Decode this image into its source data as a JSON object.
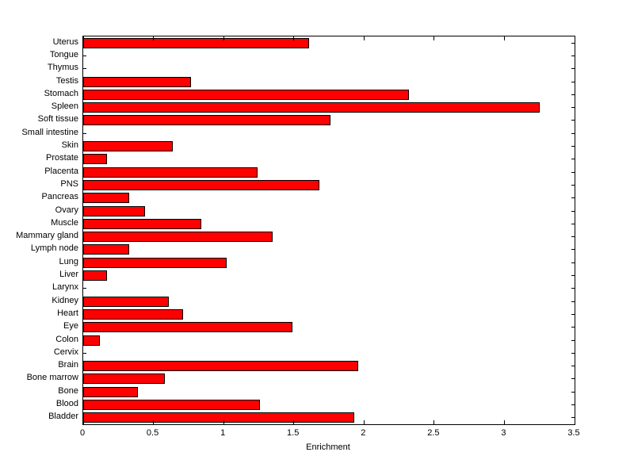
{
  "chart_data": {
    "type": "bar",
    "orientation": "horizontal",
    "title": "",
    "xlabel": "Enrichment",
    "ylabel": "",
    "xlim": [
      0,
      3.5
    ],
    "xticks": [
      0,
      0.5,
      1,
      1.5,
      2,
      2.5,
      3,
      3.5
    ],
    "xtick_labels": [
      "0",
      "0.5",
      "1",
      "1.5",
      "2",
      "2.5",
      "3",
      "3.5"
    ],
    "grid": false,
    "legend": null,
    "bar_color": "#ff0000",
    "bar_edge_color": "#000000",
    "axis_color": "#000000",
    "background_color": "#ffffff",
    "categories": [
      "Uterus",
      "Tongue",
      "Thymus",
      "Testis",
      "Stomach",
      "Spleen",
      "Soft tissue",
      "Small intestine",
      "Skin",
      "Prostate",
      "Placenta",
      "PNS",
      "Pancreas",
      "Ovary",
      "Muscle",
      "Mammary gland",
      "Lymph node",
      "Lung",
      "Liver",
      "Larynx",
      "Kidney",
      "Heart",
      "Eye",
      "Colon",
      "Cervix",
      "Brain",
      "Bone marrow",
      "Bone",
      "Blood",
      "Bladder"
    ],
    "values": [
      1.61,
      0,
      0,
      0.77,
      2.32,
      3.25,
      1.76,
      0,
      0.64,
      0.17,
      1.24,
      1.68,
      0.33,
      0.44,
      0.84,
      1.35,
      0.33,
      1.02,
      0.17,
      0,
      0.61,
      0.71,
      1.49,
      0.12,
      0,
      1.96,
      0.58,
      0.39,
      1.26,
      1.93
    ]
  }
}
